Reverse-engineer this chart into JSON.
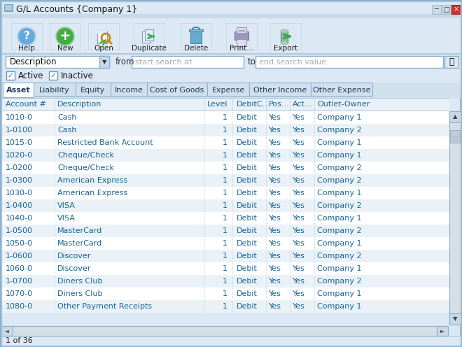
{
  "title": "G/L Accounts {Company 1}",
  "toolbar_buttons": [
    "Help",
    "New",
    "Open",
    "Duplicate",
    "Delete",
    "Print...",
    "Export"
  ],
  "search_label": "Description",
  "search_from": "start search at",
  "search_to": "end search value",
  "checkboxes": [
    "Active",
    "Inactive"
  ],
  "tabs": [
    "Asset",
    "Liability",
    "Equity",
    "Income",
    "Cost of Goods",
    "Expense",
    "Other Income",
    "Other Expense"
  ],
  "col_headers": [
    "Account #",
    "Description",
    "Level",
    "DebitC...",
    "Pos...",
    "Act...",
    "Outlet-Owner"
  ],
  "rows": [
    [
      "1010-0",
      "Cash",
      "1",
      "Debit",
      "Yes",
      "Yes",
      "Company 1"
    ],
    [
      "1-0100",
      "Cash",
      "1",
      "Debit",
      "Yes",
      "Yes",
      "Company 2"
    ],
    [
      "1015-0",
      "Restricted Bank Account",
      "1",
      "Debit",
      "Yes",
      "Yes",
      "Company 1"
    ],
    [
      "1020-0",
      "Cheque/Check",
      "1",
      "Debit",
      "Yes",
      "Yes",
      "Company 1"
    ],
    [
      "1-0200",
      "Cheque/Check",
      "1",
      "Debit",
      "Yes",
      "Yes",
      "Company 2"
    ],
    [
      "1-0300",
      "American Express",
      "1",
      "Debit",
      "Yes",
      "Yes",
      "Company 2"
    ],
    [
      "1030-0",
      "American Express",
      "1",
      "Debit",
      "Yes",
      "Yes",
      "Company 1"
    ],
    [
      "1-0400",
      "VISA",
      "1",
      "Debit",
      "Yes",
      "Yes",
      "Company 2"
    ],
    [
      "1040-0",
      "VISA",
      "1",
      "Debit",
      "Yes",
      "Yes",
      "Company 1"
    ],
    [
      "1-0500",
      "MasterCard",
      "1",
      "Debit",
      "Yes",
      "Yes",
      "Company 2"
    ],
    [
      "1050-0",
      "MasterCard",
      "1",
      "Debit",
      "Yes",
      "Yes",
      "Company 1"
    ],
    [
      "1-0600",
      "Discover",
      "1",
      "Debit",
      "Yes",
      "Yes",
      "Company 2"
    ],
    [
      "1060-0",
      "Discover",
      "1",
      "Debit",
      "Yes",
      "Yes",
      "Company 1"
    ],
    [
      "1-0700",
      "Diners Club",
      "1",
      "Debit",
      "Yes",
      "Yes",
      "Company 2"
    ],
    [
      "1070-0",
      "Diners Club",
      "1",
      "Debit",
      "Yes",
      "Yes",
      "Company 1"
    ],
    [
      "1080-0",
      "Other Payment Receipts",
      "1",
      "Debit",
      "Yes",
      "Yes",
      "Company 1"
    ]
  ],
  "status_text": "1 of 36",
  "text_blue": "#1a6496",
  "header_blue": "#2255aa",
  "window_outer_bg": "#c8daea",
  "window_inner_bg": "#dce8f4",
  "titlebar_bg": "#c5d9ea",
  "toolbar_bg": "#dce8f4",
  "search_bg": "#dce8f4",
  "tab_active_bg": "#ffffff",
  "tab_inactive_bg": "#d0e0ee",
  "tab_active_bold": true,
  "col_header_bg": "#e8f0f8",
  "row_bg_odd": "#ffffff",
  "row_bg_even": "#eaf2f8",
  "scrollbar_bg": "#d4dfe8",
  "scrollbar_thumb": "#c0ccd8",
  "border_color": "#8ab0cc",
  "sep_color": "#b0c8da",
  "dot_sep_color": "#9ab8cc"
}
